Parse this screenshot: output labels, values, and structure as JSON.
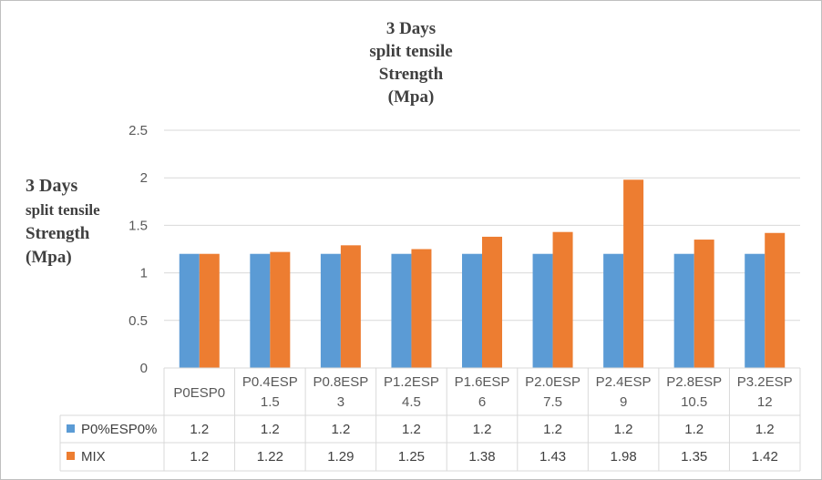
{
  "chart_data": {
    "type": "bar",
    "title": [
      "3 Days",
      "split tensile",
      "Strength",
      "(Mpa)"
    ],
    "ylabel": [
      "3 Days",
      "split tensile",
      "Strength",
      "(Mpa)"
    ],
    "xlabel": "",
    "categories": [
      [
        "P0ESP0"
      ],
      [
        "P0.4ESP",
        "1.5"
      ],
      [
        "P0.8ESP",
        "3"
      ],
      [
        "P1.2ESP",
        "4.5"
      ],
      [
        "P1.6ESP",
        "6"
      ],
      [
        "P2.0ESP",
        "7.5"
      ],
      [
        "P2.4ESP",
        "9"
      ],
      [
        "P2.8ESP",
        "10.5"
      ],
      [
        "P3.2ESP",
        "12"
      ]
    ],
    "series": [
      {
        "name": "P0%ESP0%",
        "color": "#5b9bd5",
        "values": [
          1.2,
          1.2,
          1.2,
          1.2,
          1.2,
          1.2,
          1.2,
          1.2,
          1.2
        ]
      },
      {
        "name": "MIX",
        "color": "#ed7d31",
        "values": [
          1.2,
          1.22,
          1.29,
          1.25,
          1.38,
          1.43,
          1.98,
          1.35,
          1.42
        ]
      }
    ],
    "yticks": [
      "0",
      "0.5",
      "1",
      "1.5",
      "2",
      "2.5"
    ],
    "ylim": [
      0,
      2.5
    ],
    "grid": true,
    "legend": "data-table"
  }
}
